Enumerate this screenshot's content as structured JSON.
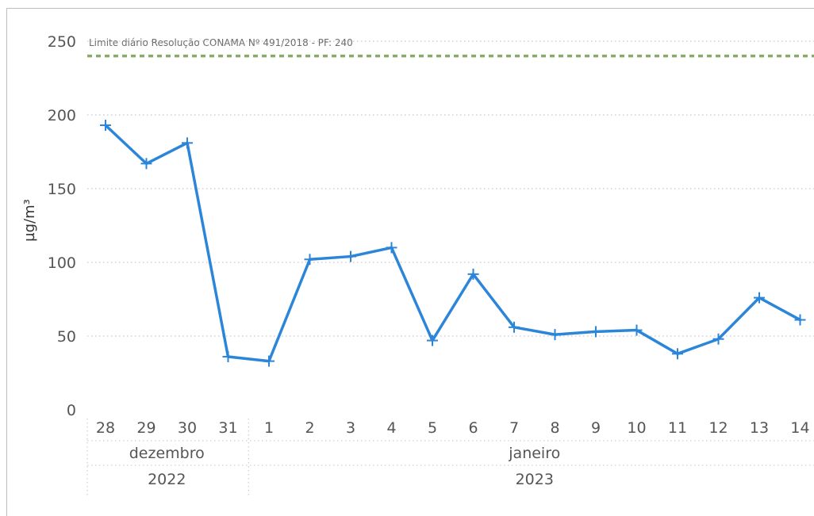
{
  "chart_data": {
    "type": "line",
    "ylabel": "µg/m³",
    "ylim": [
      0,
      250
    ],
    "yticks": [
      0,
      50,
      100,
      150,
      200,
      250
    ],
    "grid": true,
    "x": [
      "28",
      "29",
      "30",
      "31",
      "1",
      "2",
      "3",
      "4",
      "5",
      "6",
      "7",
      "8",
      "9",
      "10",
      "11",
      "12",
      "13",
      "14"
    ],
    "month_groups": [
      {
        "label": "dezembro",
        "start": 0,
        "end": 3
      },
      {
        "label": "janeiro",
        "start": 4,
        "end": 17
      }
    ],
    "year_groups": [
      {
        "label": "2022",
        "start": 0,
        "end": 3
      },
      {
        "label": "2023",
        "start": 4,
        "end": 17
      }
    ],
    "series": [
      {
        "values": [
          193,
          167,
          181,
          36,
          33,
          102,
          104,
          110,
          47,
          92,
          56,
          51,
          53,
          54,
          38,
          48,
          76,
          61
        ],
        "color": "#2b86d9"
      }
    ],
    "reference_line": {
      "label": "Limite diário Resolução CONAMA Nº 491/2018 - PF: 240",
      "value": 240,
      "color": "#8aaa6a"
    }
  }
}
